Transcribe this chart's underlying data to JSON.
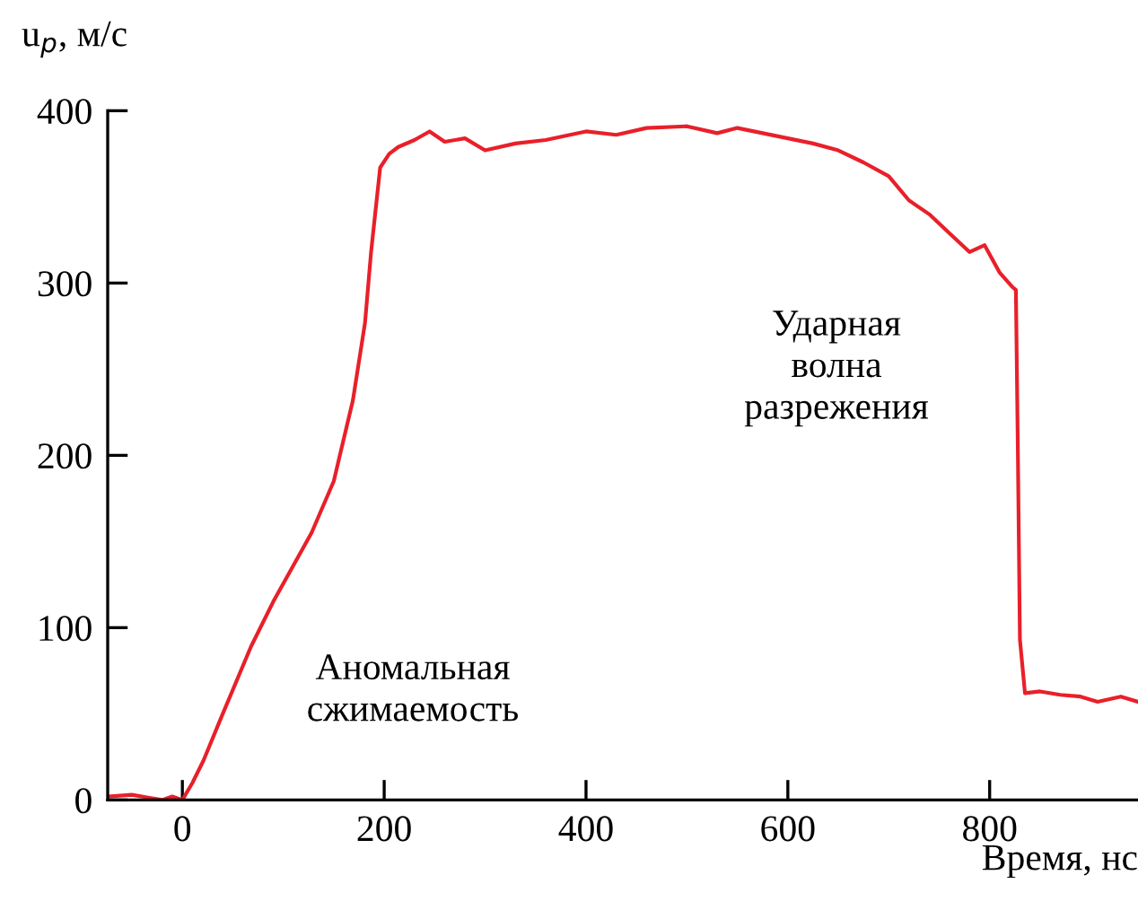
{
  "chart_data": {
    "type": "line",
    "xlabel": "Время, нс",
    "ylabel": "u$_{p}$, м/с",
    "xlim": [
      -74,
      947
    ],
    "ylim": [
      0,
      400
    ],
    "xticks": [
      0,
      200,
      400,
      600,
      800
    ],
    "yticks": [
      0,
      100,
      200,
      300,
      400
    ],
    "grid": false,
    "line_style": "solid",
    "marker": "none",
    "series": [
      {
        "color": "#e8202a",
        "x": [
          -74,
          -50,
          -30,
          -20,
          -10,
          0,
          10,
          21,
          40,
          68,
          90,
          128,
          150,
          169,
          181,
          187,
          196,
          205,
          214,
          230,
          245,
          260,
          280,
          300,
          330,
          360,
          400,
          430,
          460,
          500,
          530,
          550,
          575,
          600,
          625,
          650,
          675,
          700,
          720,
          740,
          760,
          780,
          795,
          810,
          822,
          826,
          828,
          830,
          835,
          850,
          870,
          890,
          907,
          930,
          947
        ],
        "values": [
          2,
          3,
          1,
          0,
          2,
          0,
          10,
          23,
          50,
          89,
          115,
          155,
          185,
          232,
          277,
          318,
          367,
          375,
          379,
          383,
          388,
          382,
          384,
          377,
          381,
          383,
          388,
          386,
          390,
          391,
          387,
          390,
          387,
          384,
          381,
          377,
          370,
          362,
          348,
          340,
          329,
          318,
          322,
          306,
          298,
          296,
          200,
          93,
          62,
          63,
          61,
          60,
          57,
          60,
          57
        ]
      }
    ],
    "annotations": [
      "Аномальная\nсжимаемость",
      "Ударная\nволна\nразрежения"
    ]
  }
}
